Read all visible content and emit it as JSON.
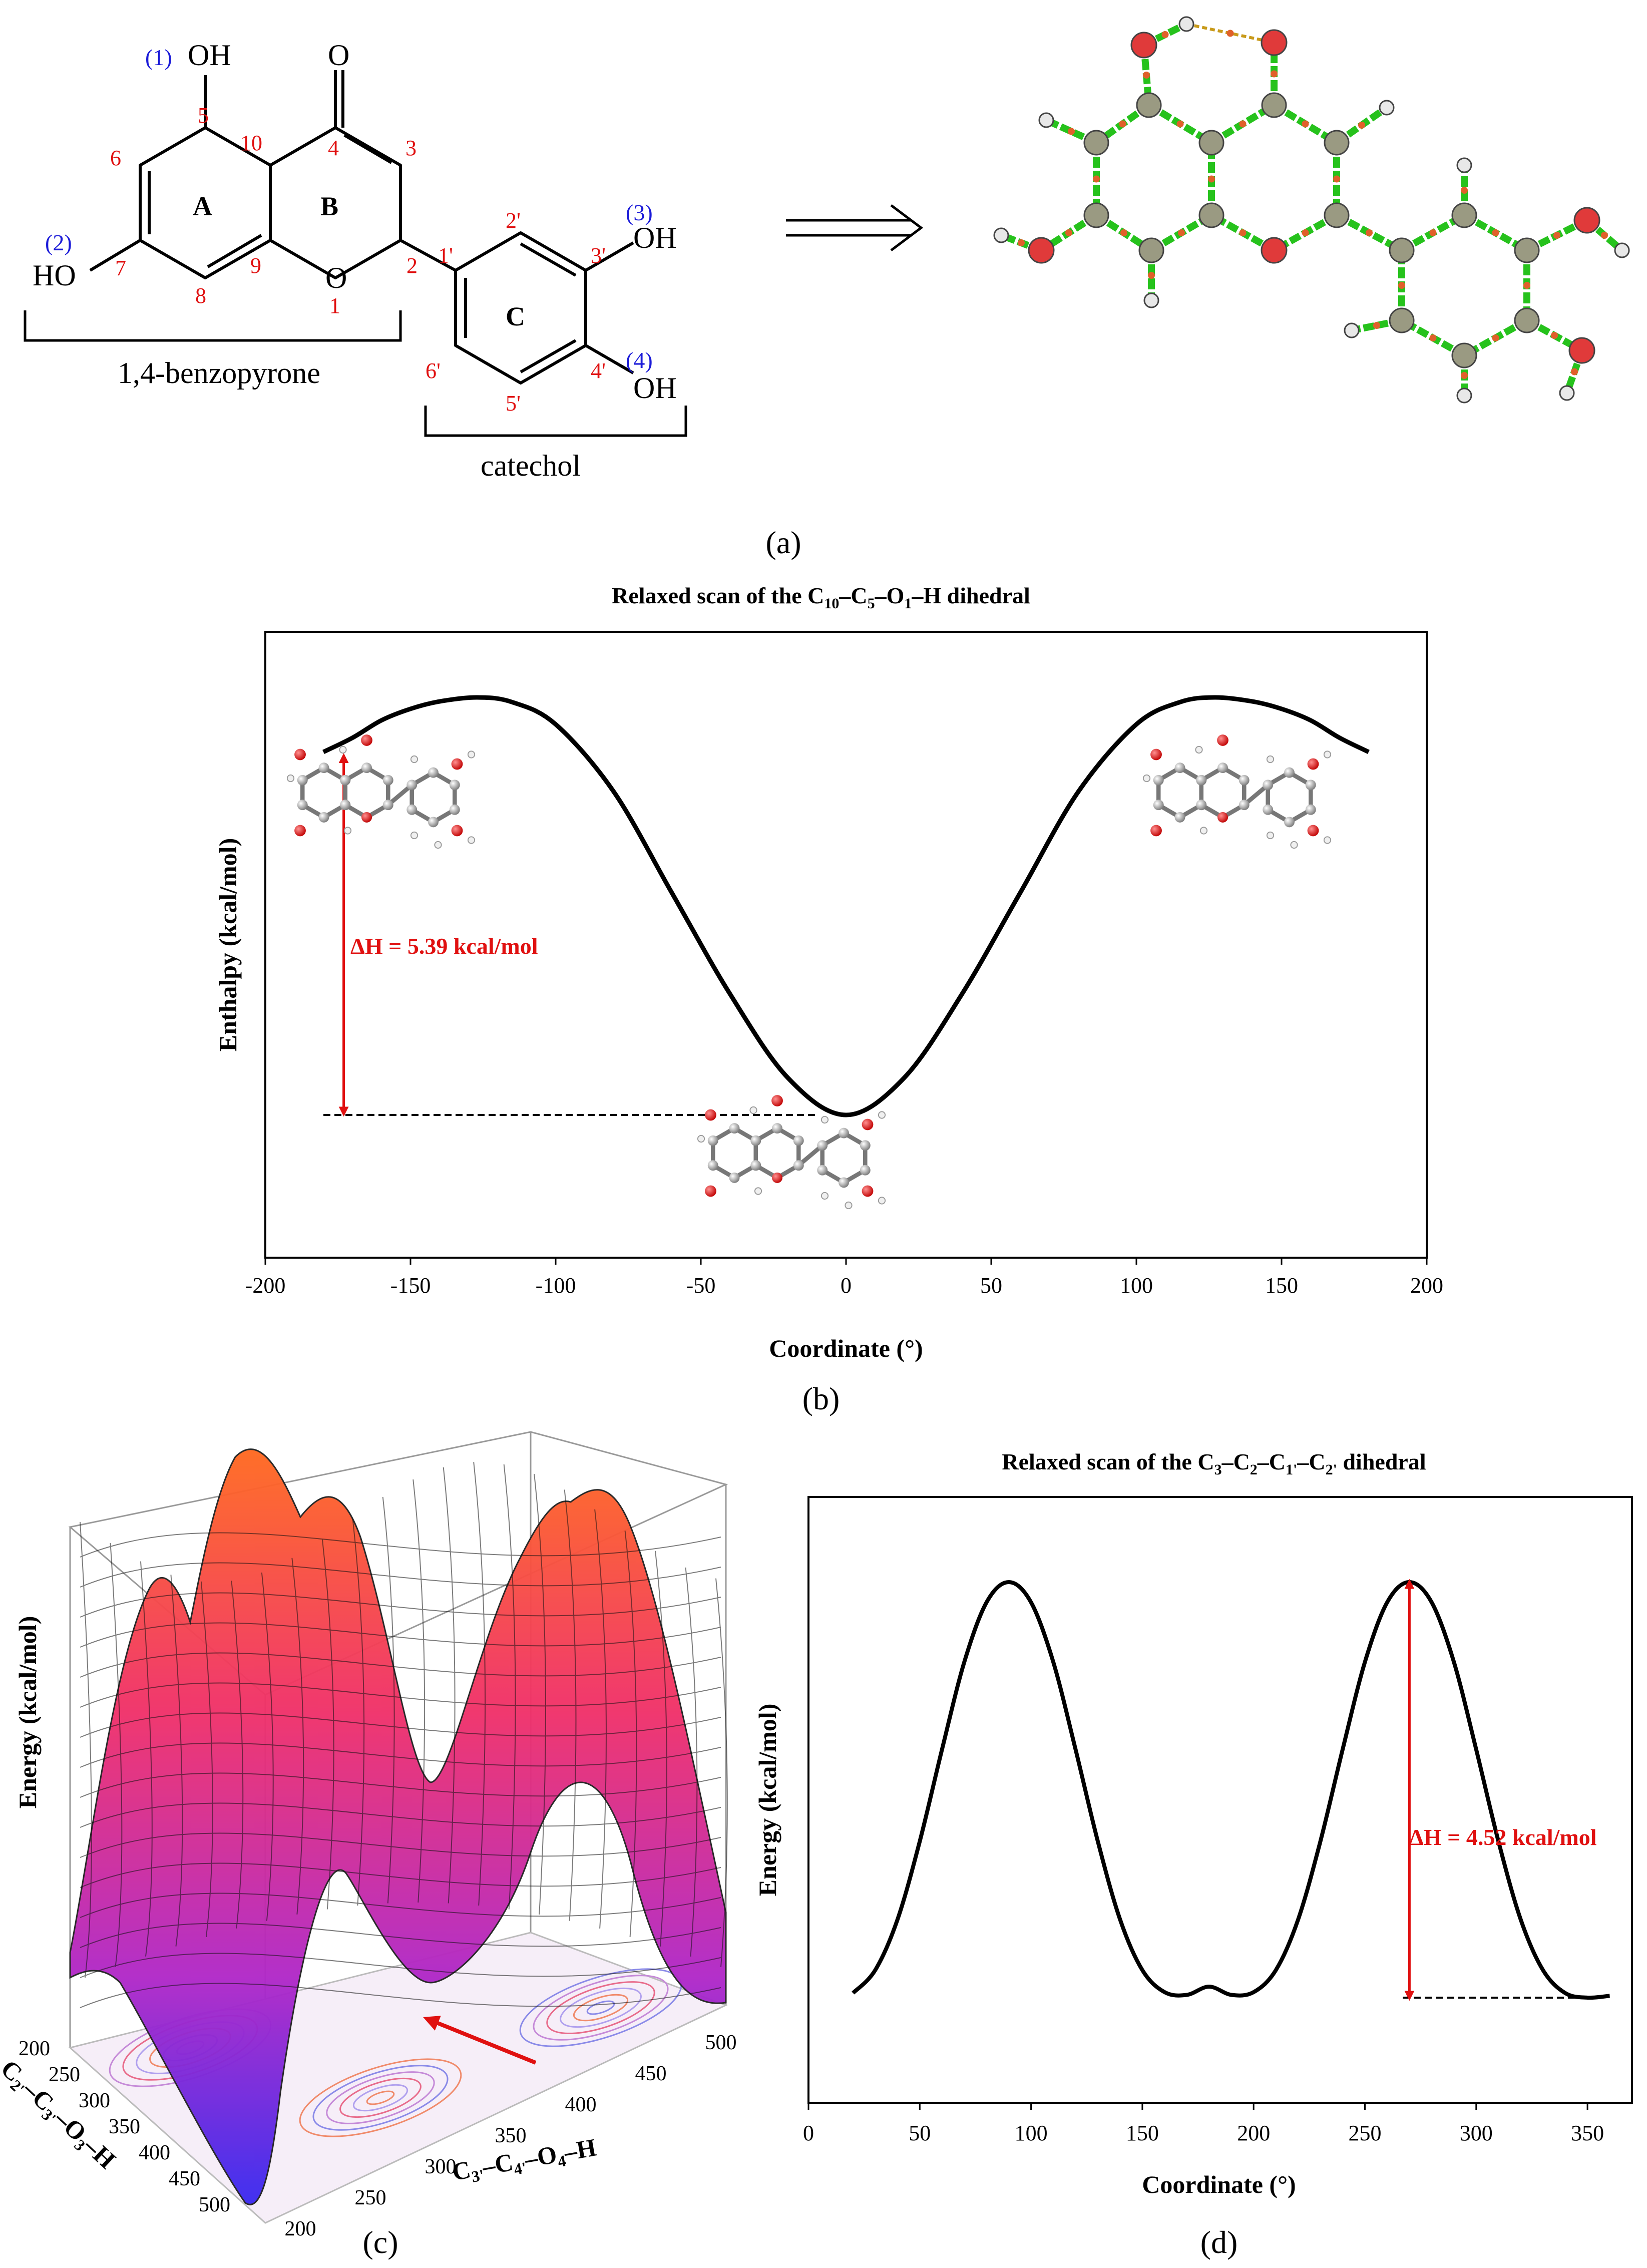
{
  "panel_a": {
    "caption": "(a)",
    "rings": [
      "A",
      "B",
      "C"
    ],
    "oh_groups": [
      {
        "index": "(1)",
        "label": "OH"
      },
      {
        "index": "(2)",
        "label": "HO"
      },
      {
        "index": "(3)",
        "label": "OH"
      },
      {
        "index": "(4)",
        "label": "OH"
      }
    ],
    "carbonyl": "O",
    "ring_oxygen": "O",
    "atom_numbers": [
      "5",
      "6",
      "7",
      "8",
      "9",
      "10",
      "4",
      "3",
      "2",
      "1",
      "1'",
      "2'",
      "3'",
      "4'",
      "5'",
      "6'"
    ],
    "brace_labels": {
      "left": "1,4-benzopyrone",
      "right": "catechol"
    },
    "arrow": "⟹"
  },
  "chart_data": [
    {
      "type": "line",
      "panel": "(b)",
      "title": "Relaxed scan of the C10–C5–O1–H dihedral",
      "title_parts": {
        "pre": "Relaxed scan of the C",
        "s1": "10",
        "m1": "–C",
        "s2": "5",
        "m2": "–O",
        "s3": "1",
        "post": "–H dihedral"
      },
      "xlabel": "Coordinate (°)",
      "ylabel": "Enthalpy (kcal/mol)",
      "xlim": [
        -200,
        200
      ],
      "xticks": [
        -200,
        -150,
        -100,
        -50,
        0,
        50,
        100,
        150,
        200
      ],
      "yticks_shown": false,
      "series": [
        {
          "x": [
            -180,
            -170,
            -160,
            -150,
            -140,
            -127,
            -115,
            -100,
            -80,
            -60,
            -40,
            -20,
            0,
            20,
            40,
            60,
            80,
            100,
            115,
            127,
            140,
            150,
            160,
            170,
            180
          ],
          "y": [
            5.39,
            5.6,
            5.86,
            6.03,
            6.14,
            6.2,
            6.13,
            5.8,
            4.8,
            3.3,
            1.8,
            0.55,
            0,
            0.55,
            1.8,
            3.3,
            4.8,
            5.8,
            6.13,
            6.2,
            6.14,
            6.03,
            5.86,
            5.6,
            5.39
          ]
        }
      ],
      "annotation": "ΔH = 5.39 kcal/mol"
    },
    {
      "type": "surface3d",
      "panel": "(c)",
      "zlabel": "Energy (kcal/mol)",
      "axis1_label": "C2'–C3'–O3–H",
      "axis1_parts": {
        "pre": "C",
        "s1": "2'",
        "m1": "–C",
        "s2": "3'",
        "m2": "–O",
        "s3": "3",
        "post": "–H"
      },
      "axis2_label": "C3'–C4'–O4–H",
      "axis2_parts": {
        "pre": "C",
        "s1": "3'",
        "m1": "–C",
        "s2": "4'",
        "m2": "–O",
        "s3": "4",
        "post": "–H"
      },
      "axis1_ticks": [
        200,
        250,
        300,
        350,
        400,
        450,
        500
      ],
      "axis2_ticks": [
        200,
        250,
        300,
        350,
        400,
        450,
        500
      ]
    },
    {
      "type": "line",
      "panel": "(d)",
      "title": "Relaxed scan of the C3–C2–C1'–C2' dihedral",
      "title_parts": {
        "pre": "Relaxed scan of the C",
        "s1": "3",
        "m1": "–C",
        "s2": "2",
        "m2": "–C",
        "s3": "1'",
        "m3": "–C",
        "s4": "2'",
        "post": " dihedral"
      },
      "xlabel": "Coordinate (°)",
      "ylabel": "Energy (kcal/mol)",
      "xlim": [
        0,
        370
      ],
      "xticks": [
        0,
        50,
        100,
        150,
        200,
        250,
        300,
        350
      ],
      "yticks_shown": false,
      "series": [
        {
          "x": [
            20,
            30,
            40,
            50,
            60,
            70,
            80,
            90,
            100,
            110,
            120,
            130,
            140,
            150,
            160,
            170,
            180,
            190,
            200,
            210,
            220,
            230,
            240,
            250,
            260,
            270,
            280,
            290,
            300,
            310,
            320,
            330,
            340,
            350,
            360
          ],
          "y": [
            0.05,
            0.3,
            0.85,
            1.7,
            2.7,
            3.65,
            4.3,
            4.52,
            4.3,
            3.65,
            2.7,
            1.7,
            0.85,
            0.3,
            0.06,
            0.03,
            0.12,
            0.03,
            0.06,
            0.3,
            0.85,
            1.7,
            2.7,
            3.65,
            4.3,
            4.52,
            4.3,
            3.65,
            2.7,
            1.7,
            0.85,
            0.3,
            0.05,
            0,
            0.02
          ]
        }
      ],
      "annotation": "ΔH = 4.52 kcal/mol"
    }
  ],
  "captions": {
    "b": "(b)",
    "c": "(c)",
    "d": "(d)"
  },
  "colors": {
    "annotation_red": "#e01010",
    "index_blue": "#1a1ad8",
    "atom_green": "#26c21c",
    "atom_grey": "#9a9a82",
    "atom_red": "#e03a3a"
  }
}
